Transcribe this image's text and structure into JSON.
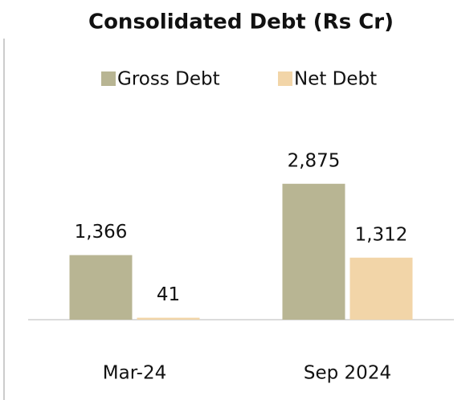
{
  "chart_data": {
    "type": "bar",
    "title": "Consolidated Debt (Rs Cr)",
    "categories": [
      "Mar-24",
      "Sep 2024"
    ],
    "series": [
      {
        "name": "Gross Debt",
        "color": "#b8b593",
        "values": [
          1366,
          2875
        ],
        "value_labels": [
          "1,366",
          "2,875"
        ]
      },
      {
        "name": "Net Debt",
        "color": "#f2d5a8",
        "values": [
          41,
          1312
        ],
        "value_labels": [
          "41",
          "1,312"
        ]
      }
    ],
    "ylim": [
      0,
      3500
    ],
    "legend": "top"
  }
}
